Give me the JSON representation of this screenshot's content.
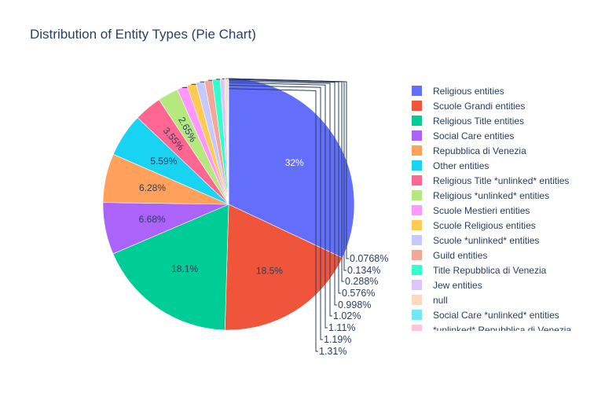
{
  "chart_data": {
    "type": "pie",
    "title": "Distribution of Entity Types (Pie Chart)",
    "legend_position": "right",
    "slices": [
      {
        "label": "Religious entities",
        "value": 32,
        "text": "32%",
        "color": "#636efa",
        "text_position": "inside",
        "text_color": "#ffffff"
      },
      {
        "label": "Scuole Grandi entities",
        "value": 18.5,
        "text": "18.5%",
        "color": "#ef553b",
        "text_position": "inside",
        "text_color": "#2a3f5f"
      },
      {
        "label": "Religious Title entities",
        "value": 18.1,
        "text": "18.1%",
        "color": "#00cc96",
        "text_position": "inside",
        "text_color": "#2a3f5f"
      },
      {
        "label": "Social Care entities",
        "value": 6.68,
        "text": "6.68%",
        "color": "#ab63fa",
        "text_position": "inside",
        "text_color": "#2a3f5f"
      },
      {
        "label": "Repubblica di Venezia",
        "value": 6.28,
        "text": "6.28%",
        "color": "#ffa15a",
        "text_position": "inside",
        "text_color": "#2a3f5f"
      },
      {
        "label": "Other entities",
        "value": 5.59,
        "text": "5.59%",
        "color": "#19d3f3",
        "text_position": "inside",
        "text_color": "#2a3f5f"
      },
      {
        "label": "Religious Title *unlinked* entities",
        "value": 3.55,
        "text": "3.55%",
        "color": "#ff6692",
        "text_position": "inside-rotated",
        "text_color": "#2a3f5f"
      },
      {
        "label": "Religious *unlinked* entities",
        "value": 2.65,
        "text": "2.65%",
        "color": "#b6e880",
        "text_position": "inside-rotated",
        "text_color": "#2a3f5f"
      },
      {
        "label": "Scuole Mestieri entities",
        "value": 1.31,
        "text": "1.31%",
        "color": "#ff97ff",
        "text_position": "outside",
        "text_color": "#2a3f5f"
      },
      {
        "label": "Scuole Religious entities",
        "value": 1.19,
        "text": "1.19%",
        "color": "#fecb52",
        "text_position": "outside",
        "text_color": "#2a3f5f"
      },
      {
        "label": "Scuole *unlinked* entities",
        "value": 1.11,
        "text": "1.11%",
        "color": "#c5c9fd",
        "text_position": "outside",
        "text_color": "#2a3f5f"
      },
      {
        "label": "Guild entities",
        "value": 1.02,
        "text": "1.02%",
        "color": "#f2a797",
        "text_position": "outside",
        "text_color": "#2a3f5f"
      },
      {
        "label": "Title Repubblica di Venezia",
        "value": 0.998,
        "text": "0.998%",
        "color": "#33ffcc",
        "text_position": "outside",
        "text_color": "#2a3f5f"
      },
      {
        "label": "Jew entities",
        "value": 0.576,
        "text": "0.576%",
        "color": "#dcc5fb",
        "text_position": "outside",
        "text_color": "#2a3f5f"
      },
      {
        "label": "null",
        "value": 0.288,
        "text": "0.288%",
        "color": "#ffd9bd",
        "text_position": "outside",
        "text_color": "#2a3f5f"
      },
      {
        "label": "Social Care *unlinked* entities",
        "value": 0.134,
        "text": "0.134%",
        "color": "#75e5f8",
        "text_position": "outside",
        "text_color": "#2a3f5f"
      },
      {
        "label": "*unlinked* Repubblica di Venezia",
        "value": 0.0768,
        "text": "0.0768%",
        "color": "#ffc4d6",
        "text_position": "outside",
        "text_color": "#2a3f5f"
      }
    ]
  }
}
